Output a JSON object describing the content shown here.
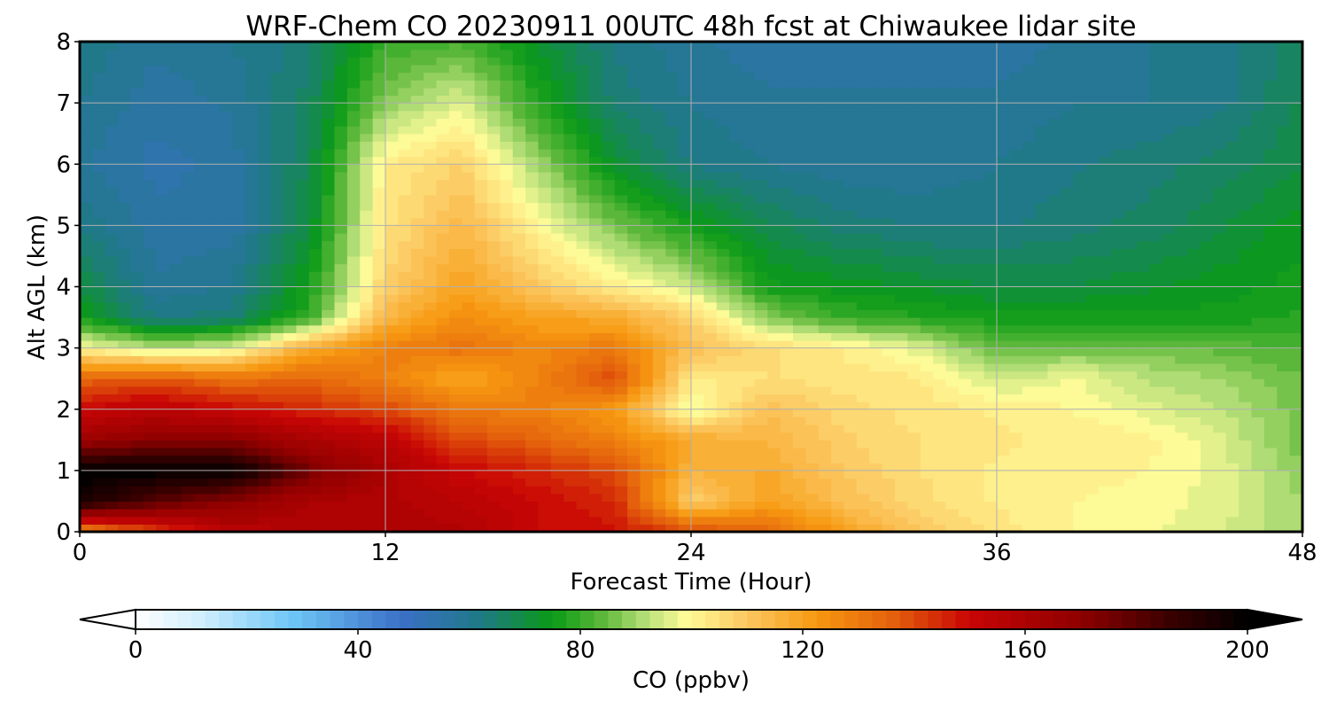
{
  "chart_data": {
    "type": "heatmap",
    "title": "WRF-Chem CO  20230911 00UTC 48h fcst at Chiwaukee lidar site",
    "xlabel": "Forecast Time (Hour)",
    "ylabel": "Alt AGL (km)",
    "xlim": [
      0,
      48
    ],
    "ylim": [
      0,
      8
    ],
    "xticks": [
      0,
      12,
      24,
      36,
      48
    ],
    "yticks": [
      0,
      1,
      2,
      3,
      4,
      5,
      6,
      7,
      8
    ],
    "grid": true,
    "colorbar": {
      "label": "CO  (ppbv)",
      "min": 0,
      "max": 200,
      "step": 2.5,
      "ticks": [
        0,
        40,
        80,
        120,
        160,
        200
      ],
      "extend": "both",
      "stops": [
        {
          "value": 0,
          "color": "#ffffff"
        },
        {
          "value": 12,
          "color": "#cfeefd"
        },
        {
          "value": 28,
          "color": "#6ec6f7"
        },
        {
          "value": 48,
          "color": "#3a6fc7"
        },
        {
          "value": 62,
          "color": "#1f7a86"
        },
        {
          "value": 75,
          "color": "#0a9a16"
        },
        {
          "value": 84,
          "color": "#5cb83a"
        },
        {
          "value": 92,
          "color": "#b8e07a"
        },
        {
          "value": 99,
          "color": "#fffc98"
        },
        {
          "value": 110,
          "color": "#fcc760"
        },
        {
          "value": 122,
          "color": "#f79a12"
        },
        {
          "value": 136,
          "color": "#e4620c"
        },
        {
          "value": 150,
          "color": "#c80505"
        },
        {
          "value": 170,
          "color": "#8e0000"
        },
        {
          "value": 186,
          "color": "#3a0000"
        },
        {
          "value": 200,
          "color": "#000000"
        }
      ]
    },
    "field": {
      "x": [
        0,
        3,
        6,
        9,
        12,
        15,
        18,
        21,
        24,
        27,
        30,
        33,
        36,
        39,
        42,
        45,
        48
      ],
      "y": [
        0,
        0.5,
        1,
        1.5,
        2,
        2.5,
        3,
        3.5,
        4,
        5,
        6,
        7,
        8
      ],
      "z": [
        [
          125,
          140,
          155,
          158,
          160,
          158,
          150,
          148,
          140,
          135,
          120,
          110,
          104,
          100,
          98,
          95,
          90
        ],
        [
          195,
          180,
          170,
          160,
          158,
          155,
          150,
          145,
          108,
          120,
          112,
          106,
          102,
          100,
          99,
          96,
          90
        ],
        [
          200,
          200,
          200,
          175,
          160,
          150,
          145,
          140,
          115,
          118,
          110,
          105,
          102,
          101,
          100,
          96,
          88
        ],
        [
          165,
          170,
          170,
          160,
          155,
          140,
          135,
          128,
          118,
          115,
          108,
          105,
          103,
          102,
          101,
          95,
          86
        ],
        [
          150,
          155,
          150,
          145,
          140,
          130,
          128,
          122,
          96,
          112,
          106,
          104,
          102,
          100,
          96,
          92,
          86
        ],
        [
          135,
          138,
          132,
          135,
          128,
          118,
          128,
          140,
          102,
          105,
          104,
          103,
          94,
          98,
          92,
          90,
          85
        ],
        [
          100,
          92,
          96,
          118,
          128,
          132,
          126,
          130,
          112,
          106,
          102,
          96,
          84,
          86,
          86,
          84,
          82
        ],
        [
          76,
          62,
          64,
          80,
          115,
          125,
          120,
          118,
          108,
          88,
          80,
          78,
          76,
          76,
          76,
          76,
          78
        ],
        [
          70,
          58,
          60,
          76,
          108,
          120,
          110,
          102,
          94,
          76,
          74,
          72,
          70,
          70,
          72,
          74,
          76
        ],
        [
          62,
          56,
          56,
          70,
          104,
          114,
          100,
          86,
          76,
          68,
          64,
          62,
          62,
          64,
          66,
          70,
          74
        ],
        [
          58,
          54,
          56,
          68,
          102,
          108,
          90,
          72,
          62,
          60,
          58,
          58,
          60,
          62,
          64,
          66,
          70
        ],
        [
          60,
          56,
          58,
          66,
          88,
          96,
          78,
          64,
          60,
          58,
          58,
          58,
          58,
          60,
          60,
          62,
          68
        ],
        [
          62,
          58,
          60,
          64,
          80,
          82,
          72,
          62,
          58,
          56,
          56,
          56,
          56,
          58,
          60,
          62,
          66
        ]
      ]
    }
  }
}
